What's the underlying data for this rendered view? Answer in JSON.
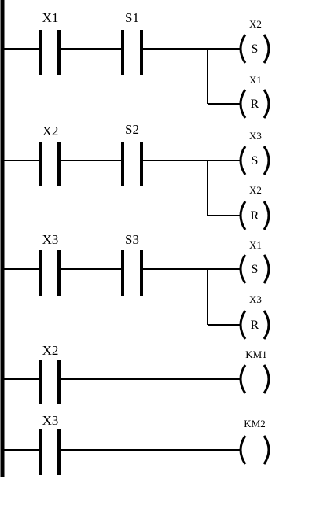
{
  "diagram": {
    "rungs": [
      {
        "contacts": [
          "X1",
          "S1"
        ],
        "coils": [
          {
            "label": "X2",
            "letter": "S"
          },
          {
            "label": "X1",
            "letter": "R"
          }
        ]
      },
      {
        "contacts": [
          "X2",
          "S2"
        ],
        "coils": [
          {
            "label": "X3",
            "letter": "S"
          },
          {
            "label": "X2",
            "letter": "R"
          }
        ]
      },
      {
        "contacts": [
          "X3",
          "S3"
        ],
        "coils": [
          {
            "label": "X1",
            "letter": "S"
          },
          {
            "label": "X3",
            "letter": "R"
          }
        ]
      },
      {
        "contacts": [
          "X2"
        ],
        "coils": [
          {
            "label": "KM1",
            "letter": ""
          }
        ]
      },
      {
        "contacts": [
          "X3"
        ],
        "coils": [
          {
            "label": "KM2",
            "letter": ""
          }
        ]
      }
    ]
  }
}
